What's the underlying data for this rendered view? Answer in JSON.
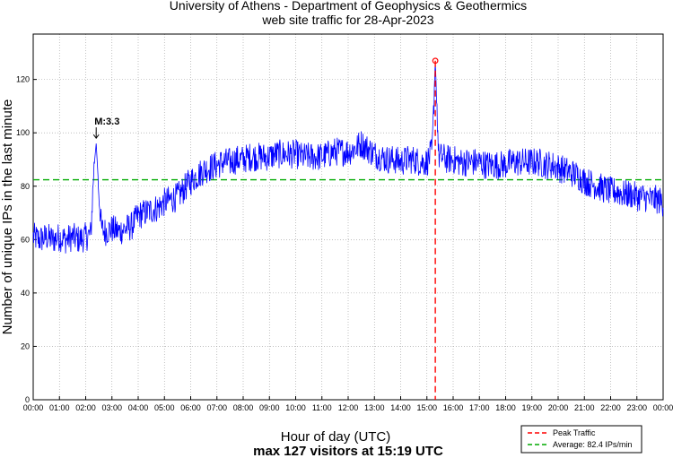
{
  "chart_data": {
    "type": "line",
    "title": [
      "University of Athens - Department of Geophysics & Geothermics",
      "web site traffic for 28-Apr-2023"
    ],
    "xlabel": "Hour of day (UTC)",
    "ylabel": "Number of unique IPs in the last minute",
    "xlim": [
      0,
      24
    ],
    "ylim": [
      0,
      137
    ],
    "grid": true,
    "x_ticks": [
      "00:00",
      "01:00",
      "02:00",
      "03:00",
      "04:00",
      "05:00",
      "06:00",
      "07:00",
      "08:00",
      "09:00",
      "10:00",
      "11:00",
      "12:00",
      "13:00",
      "14:00",
      "15:00",
      "16:00",
      "17:00",
      "18:00",
      "19:00",
      "20:00",
      "21:00",
      "22:00",
      "23:00",
      "00:00"
    ],
    "y_ticks": [
      0,
      20,
      40,
      60,
      80,
      100,
      120
    ],
    "series": [
      {
        "name": "Traffic",
        "color": "#0000ff",
        "x_hours": [
          0,
          0.25,
          0.5,
          0.75,
          1,
          1.25,
          1.5,
          1.75,
          2,
          2.2,
          2.3,
          2.4,
          2.5,
          2.6,
          2.75,
          3,
          3.25,
          3.5,
          3.75,
          4,
          4.25,
          4.5,
          4.75,
          5,
          5.25,
          5.5,
          5.75,
          6,
          6.25,
          6.5,
          6.75,
          7,
          7.25,
          7.5,
          7.75,
          8,
          8.25,
          8.5,
          8.75,
          9,
          9.25,
          9.5,
          9.75,
          10,
          10.25,
          10.5,
          10.75,
          11,
          11.25,
          11.5,
          11.75,
          12,
          12.25,
          12.5,
          12.75,
          13,
          13.25,
          13.5,
          13.75,
          14,
          14.25,
          14.5,
          14.75,
          15,
          15.2,
          15.32,
          15.45,
          15.6,
          15.75,
          16,
          16.25,
          16.5,
          16.75,
          17,
          17.25,
          17.5,
          17.75,
          18,
          18.25,
          18.5,
          18.75,
          19,
          19.25,
          19.5,
          19.75,
          20,
          20.25,
          20.5,
          20.75,
          21,
          21.25,
          21.5,
          21.75,
          22,
          22.25,
          22.5,
          22.75,
          23,
          23.25,
          23.5,
          23.75,
          24
        ],
        "values": [
          61,
          60,
          61,
          60,
          61,
          60,
          61,
          60,
          61,
          62,
          85,
          96,
          78,
          64,
          63,
          64,
          63,
          64,
          65,
          69,
          70,
          71,
          72,
          74,
          75,
          76,
          79,
          82,
          84,
          86,
          87,
          88,
          89,
          89,
          90,
          90,
          91,
          91,
          91,
          91,
          92,
          92,
          92,
          92,
          91,
          91,
          91,
          91,
          92,
          93,
          93,
          93,
          94,
          96,
          94,
          92,
          91,
          90,
          90,
          89,
          90,
          90,
          89,
          89,
          93,
          127,
          91,
          91,
          90,
          90,
          89,
          89,
          89,
          89,
          88,
          88,
          88,
          88,
          89,
          89,
          89,
          89,
          89,
          88,
          88,
          87,
          86,
          85,
          84,
          82,
          81,
          80,
          79,
          78,
          78,
          77,
          77,
          76,
          76,
          75,
          75,
          74
        ]
      }
    ],
    "annotations": [
      {
        "text": "M:3.3",
        "x_hour": 2.4,
        "y": 97
      }
    ],
    "peak": {
      "x_hour": 15.32,
      "value": 127,
      "color": "#ff0000"
    },
    "average": {
      "value": 82.4,
      "color": "#00aa00"
    },
    "legend": {
      "position": "bottom-right",
      "entries": [
        {
          "label": "Peak Traffic",
          "color": "#ff0000"
        },
        {
          "label": "Average: 82.4 IPs/min",
          "color": "#00aa00"
        }
      ]
    },
    "footer": [
      "Hour of day (UTC)",
      "max 127 visitors at 15:19 UTC"
    ]
  }
}
